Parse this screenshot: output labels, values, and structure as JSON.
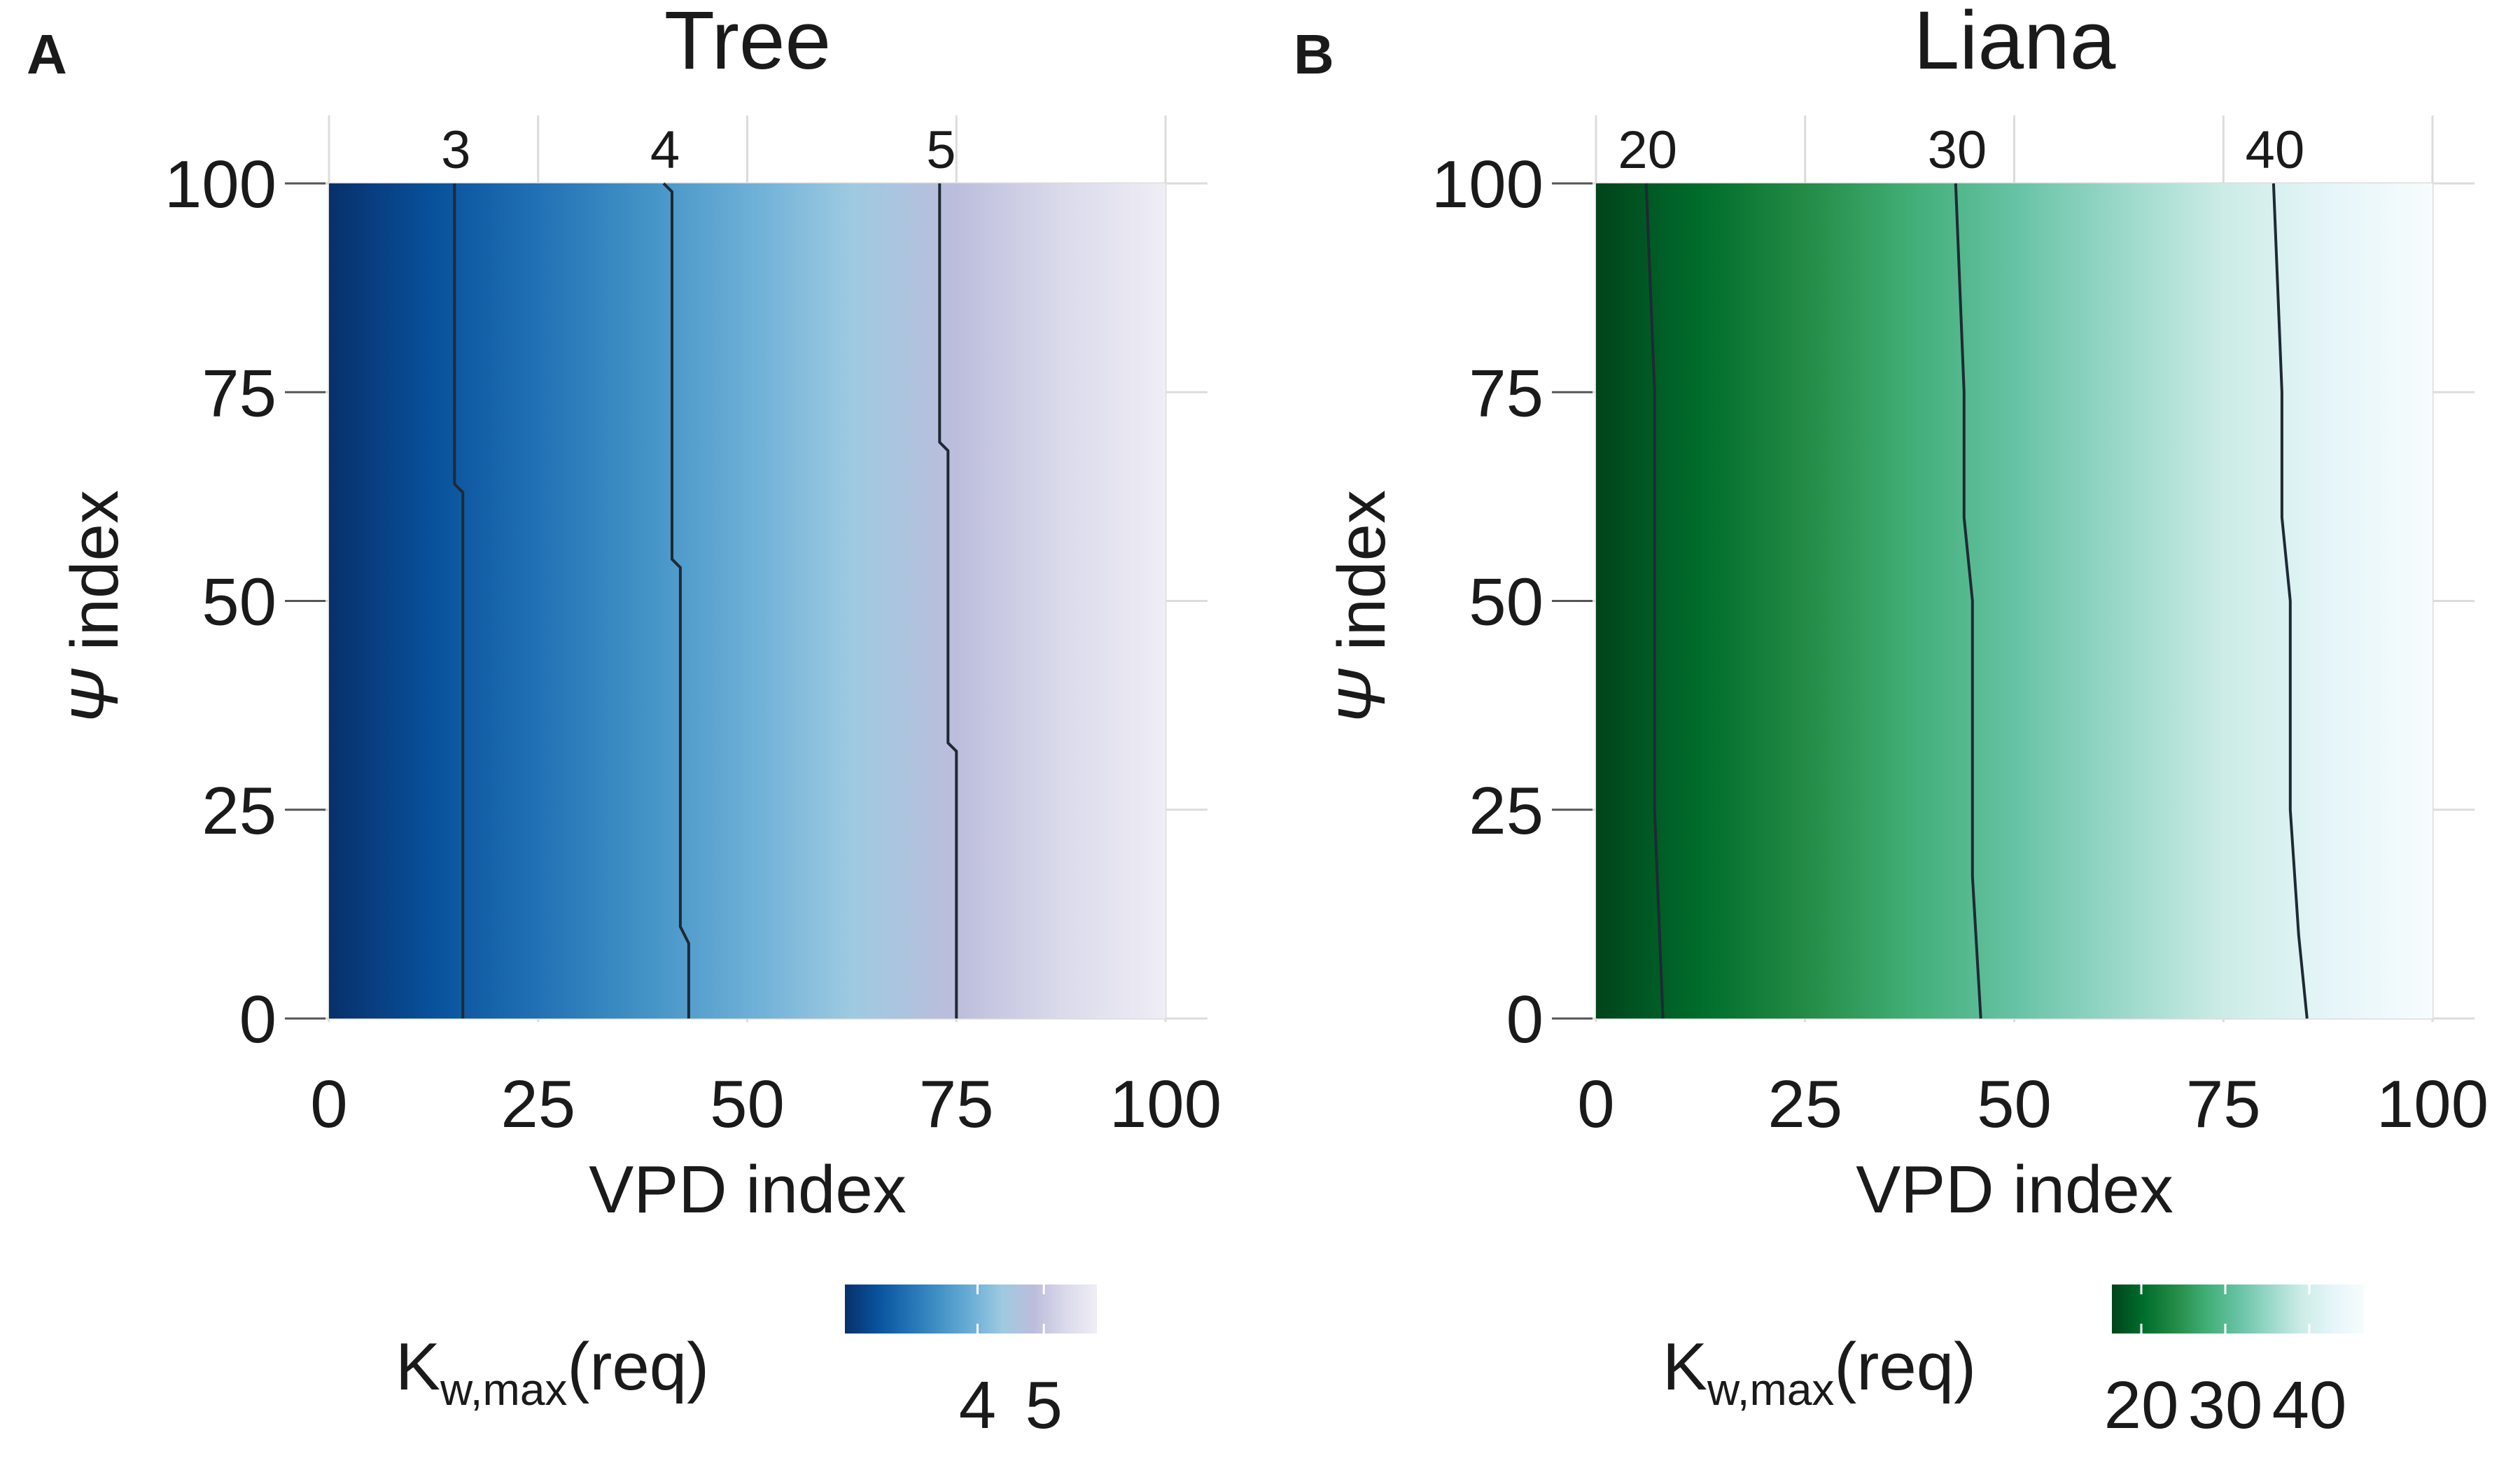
{
  "chart_data": [
    {
      "type": "heatmap",
      "panel_label": "A",
      "title": "Tree",
      "xlabel": "VPD index",
      "ylabel_symbol": "Ψ",
      "ylabel_text": " index",
      "xlim": [
        0,
        100
      ],
      "ylim": [
        0,
        100
      ],
      "x_ticks": [
        0,
        25,
        50,
        75,
        100
      ],
      "y_ticks": [
        0,
        25,
        50,
        75,
        100
      ],
      "grid": true,
      "fill_description": "value increases from left (low VPD) to right (high VPD), nearly constant along Ψ",
      "value_range": [
        2.0,
        5.8
      ],
      "colormap": [
        "#08306b",
        "#08519c",
        "#2171b5",
        "#4292c6",
        "#6baed6",
        "#9ecae1",
        "#bcbddc",
        "#dadaeb",
        "#efedf5"
      ],
      "contours": [
        {
          "level": 3,
          "label": "3",
          "points": [
            [
              15,
              100
            ],
            [
              15,
              64
            ],
            [
              16,
              63
            ],
            [
              16,
              0
            ]
          ]
        },
        {
          "level": 4,
          "label": "4",
          "points": [
            [
              40,
              100
            ],
            [
              41,
              99
            ],
            [
              41,
              55
            ],
            [
              42,
              54
            ],
            [
              42,
              11
            ],
            [
              43,
              9
            ],
            [
              43,
              0
            ]
          ]
        },
        {
          "level": 5,
          "label": "5",
          "points": [
            [
              73,
              100
            ],
            [
              73,
              69
            ],
            [
              74,
              68
            ],
            [
              74,
              33
            ],
            [
              75,
              32
            ],
            [
              75,
              0
            ]
          ]
        }
      ],
      "legend": {
        "title_main": "K",
        "title_sub": "w,max",
        "title_rest": "(req)",
        "ticks": [
          4,
          5
        ],
        "tick_labels": [
          "4",
          "5"
        ],
        "placement": "bottom"
      }
    },
    {
      "type": "heatmap",
      "panel_label": "B",
      "title": "Liana",
      "xlabel": "VPD index",
      "ylabel_symbol": "Ψ",
      "ylabel_text": " index",
      "xlim": [
        0,
        100
      ],
      "ylim": [
        0,
        100
      ],
      "x_ticks": [
        0,
        25,
        50,
        75,
        100
      ],
      "y_ticks": [
        0,
        25,
        50,
        75,
        100
      ],
      "grid": true,
      "fill_description": "value increases from left (low VPD) to right (high VPD), nearly constant along Ψ",
      "value_range": [
        16.5,
        46.5
      ],
      "colormap": [
        "#00441b",
        "#006d2c",
        "#238b45",
        "#41ae76",
        "#66c2a4",
        "#99d8c9",
        "#ccece6",
        "#e5f5f9",
        "#f7fcfd"
      ],
      "contours": [
        {
          "level": 20,
          "label": "20",
          "points": [
            [
              6,
              100
            ],
            [
              7,
              75
            ],
            [
              7,
              50
            ],
            [
              7,
              25
            ],
            [
              8,
              0
            ]
          ]
        },
        {
          "level": 30,
          "label": "30",
          "points": [
            [
              43,
              100
            ],
            [
              44,
              75
            ],
            [
              44,
              60
            ],
            [
              45,
              50
            ],
            [
              45,
              25
            ],
            [
              45,
              17
            ],
            [
              46,
              0
            ]
          ]
        },
        {
          "level": 40,
          "label": "40",
          "points": [
            [
              81,
              100
            ],
            [
              82,
              75
            ],
            [
              82,
              60
            ],
            [
              83,
              50
            ],
            [
              83,
              25
            ],
            [
              84,
              10
            ],
            [
              85,
              0
            ]
          ]
        }
      ],
      "legend": {
        "title_main": "K",
        "title_sub": "w,max",
        "title_rest": "(req)",
        "ticks": [
          20,
          30,
          40
        ],
        "tick_labels": [
          "20",
          "30",
          "40"
        ],
        "placement": "bottom"
      }
    }
  ]
}
